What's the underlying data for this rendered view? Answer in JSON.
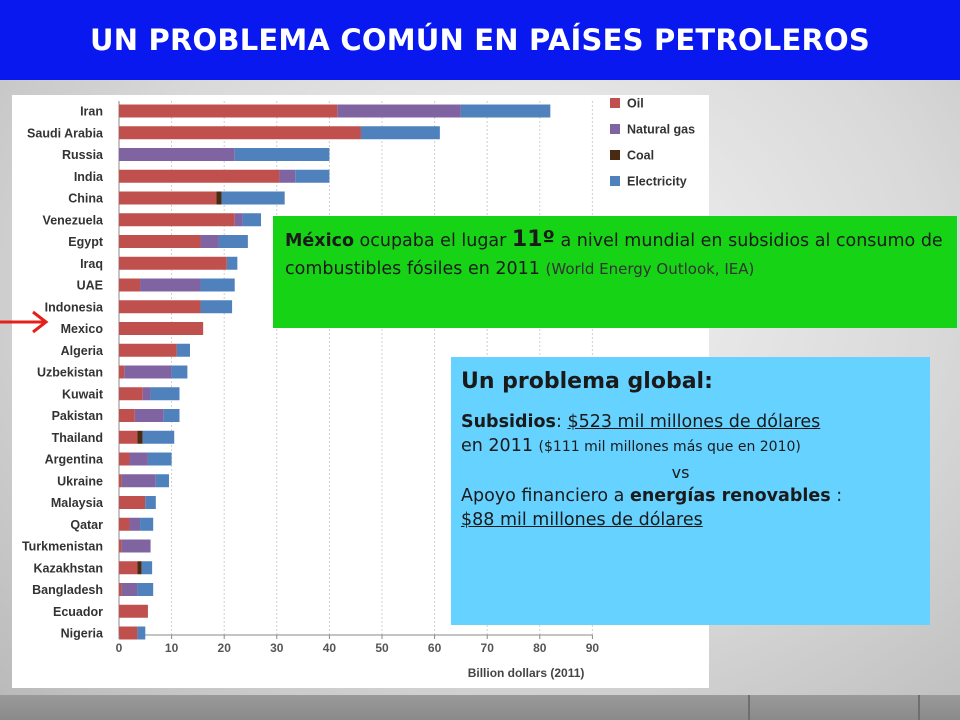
{
  "slide": {
    "title": "UN PROBLEMA COMÚN EN PAÍSES PETROLEROS"
  },
  "colors": {
    "title_bar": "#0a18f0",
    "green_box": "#17d316",
    "blue_box": "#66d2ff",
    "arrow": "#e4201b"
  },
  "callout_mexico": {
    "country_bold": "México",
    "text_a": " ocupaba el lugar ",
    "rank": "11º",
    "text_b": " a nivel mundial en subsidios al consumo de combustibles fósiles en 2011 ",
    "source": "(World Energy Outlook, IEA)"
  },
  "callout_global": {
    "heading": "Un problema global:",
    "subsidies_label": "Subsidios",
    "subsidies_colon": ": ",
    "subsidies_value": "$523 mil millones de dólares",
    "year_text": "en 2011",
    "year_note": "($111 mil millones más que en 2010)",
    "vs": "vs",
    "support_text": "Apoyo financiero a ",
    "support_bold": "energías renovables",
    "support_colon": " :",
    "support_value": "$88 mil millones de dólares"
  },
  "chart_data": {
    "type": "bar",
    "orientation": "horizontal",
    "stacked": true,
    "title": "",
    "xlabel": "Billion dollars (2011)",
    "ylabel": "",
    "xlim": [
      0,
      90
    ],
    "xticks": [
      0,
      10,
      20,
      30,
      40,
      50,
      60,
      70,
      80,
      90
    ],
    "grid": true,
    "legend_position": "top-right",
    "highlight_category": "Mexico",
    "categories": [
      "Iran",
      "Saudi Arabia",
      "Russia",
      "India",
      "China",
      "Venezuela",
      "Egypt",
      "Iraq",
      "UAE",
      "Indonesia",
      "Mexico",
      "Algeria",
      "Uzbekistan",
      "Kuwait",
      "Pakistan",
      "Thailand",
      "Argentina",
      "Ukraine",
      "Malaysia",
      "Qatar",
      "Turkmenistan",
      "Kazakhstan",
      "Bangladesh",
      "Ecuador",
      "Nigeria"
    ],
    "series": [
      {
        "name": "Oil",
        "color": "#c0504d",
        "values": [
          41.5,
          46,
          0,
          30.5,
          18.5,
          22,
          15.5,
          20.5,
          4,
          15.5,
          16,
          11,
          1,
          4.5,
          3,
          3.5,
          2,
          0.5,
          5,
          2,
          0.5,
          3.5,
          0.5,
          5.5,
          3.5
        ]
      },
      {
        "name": "Natural gas",
        "color": "#8064a2",
        "values": [
          23.5,
          0,
          22,
          3,
          0,
          1.5,
          3.5,
          0,
          11.5,
          0,
          0,
          0,
          9,
          1.5,
          5.5,
          0,
          3.5,
          6.5,
          0,
          2,
          5.5,
          0,
          3,
          0,
          0
        ]
      },
      {
        "name": "Coal",
        "color": "#4a2a10",
        "values": [
          0,
          0,
          0,
          0,
          1,
          0,
          0,
          0,
          0,
          0,
          0,
          0,
          0,
          0,
          0,
          1,
          0,
          0,
          0,
          0,
          0,
          0.8,
          0,
          0,
          0
        ]
      },
      {
        "name": "Electricity",
        "color": "#4f81bd",
        "values": [
          17,
          15,
          18,
          6.5,
          12,
          3.5,
          5.5,
          2,
          6.5,
          6,
          0,
          2.5,
          3,
          5.5,
          3,
          6,
          4.5,
          2.5,
          2,
          2.5,
          0,
          2,
          3,
          0,
          1.5
        ]
      }
    ]
  }
}
